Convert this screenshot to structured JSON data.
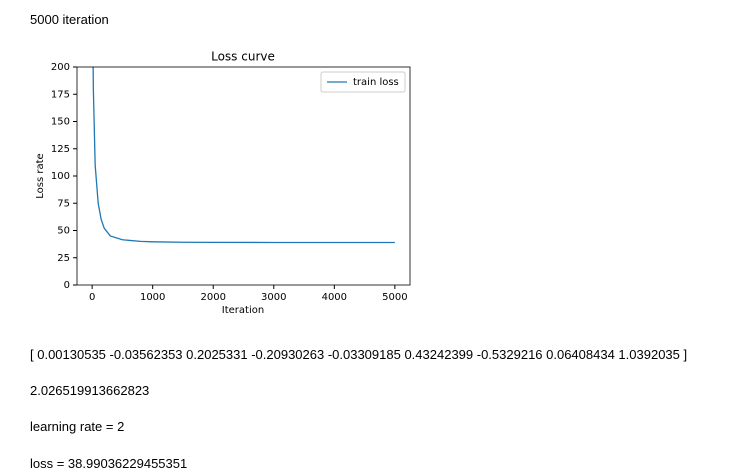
{
  "outputs": {
    "heading": "5000 iteration",
    "coefficients": "[ 0.00130535 -0.03562353 0.2025331 -0.20930263 -0.03309185 0.43242399 -0.5329216 0.06408434 1.0392035 ]",
    "value": "2.026519913662823",
    "learning_rate": "learning rate = 2",
    "loss": "loss = 38.99036229455351"
  },
  "chart_data": {
    "type": "line",
    "title": "Loss curve",
    "x_label": "Iteration",
    "y_label": "Loss rate",
    "x": [
      0,
      20,
      50,
      100,
      150,
      200,
      300,
      500,
      800,
      1000,
      1500,
      2000,
      3000,
      4000,
      5000
    ],
    "series": [
      {
        "name": "train loss",
        "color": "#1f77b4",
        "values": [
          300,
          180,
          110,
          75,
          60,
          52,
          45,
          41.5,
          40,
          39.6,
          39.2,
          39.1,
          39,
          39,
          39
        ]
      }
    ],
    "xlim": [
      -250,
      5250
    ],
    "xticks": [
      0,
      1000,
      2000,
      3000,
      4000,
      5000
    ],
    "ylim": [
      0,
      200
    ],
    "yticks": [
      0,
      25,
      50,
      75,
      100,
      125,
      150,
      175,
      200
    ],
    "grid": false,
    "legend": "upper right"
  }
}
